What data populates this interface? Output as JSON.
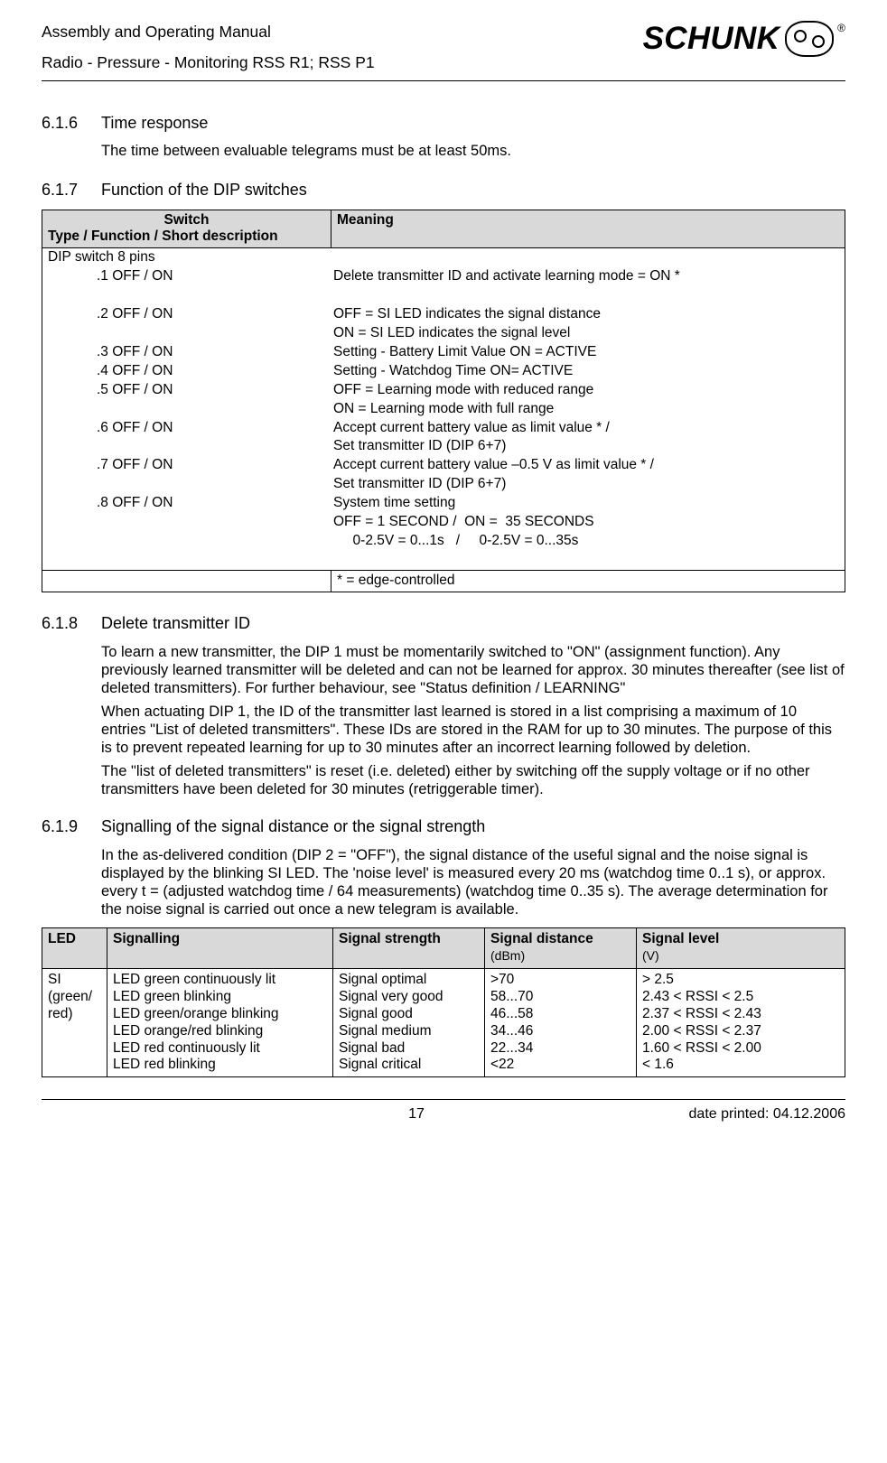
{
  "header": {
    "line1": "Assembly and Operating Manual",
    "line2": "Radio - Pressure - Monitoring RSS R1; RSS P1",
    "logo_text": "SCHUNK",
    "logo_reg": "®"
  },
  "s616": {
    "num": "6.1.6",
    "title": "Time response",
    "text": "The time between evaluable telegrams must be at least 50ms."
  },
  "s617": {
    "num": "6.1.7",
    "title": "Function of the DIP switches",
    "th1a": "Switch",
    "th1b": "Type / Function / Short description",
    "th2": "Meaning",
    "dip_title": "DIP switch 8 pins",
    "rows": [
      {
        "k": ".1 OFF / ON",
        "v": "Delete transmitter ID and activate learning mode = ON *"
      },
      {
        "k": "",
        "v": ""
      },
      {
        "k": ".2 OFF / ON",
        "v": "OFF = SI LED indicates the signal distance"
      },
      {
        "k": "",
        "v": "ON = SI LED indicates the signal level"
      },
      {
        "k": ".3 OFF / ON",
        "v": "Setting - Battery Limit Value ON = ACTIVE"
      },
      {
        "k": ".4 OFF / ON",
        "v": "Setting - Watchdog Time ON= ACTIVE"
      },
      {
        "k": ".5 OFF / ON",
        "v": "OFF = Learning mode with reduced range"
      },
      {
        "k": "",
        "v": "ON = Learning mode with full range"
      },
      {
        "k": ".6 OFF / ON",
        "v": "Accept current battery value as limit value * /"
      },
      {
        "k": "",
        "v": "Set transmitter ID (DIP 6+7)"
      },
      {
        "k": ".7 OFF / ON",
        "v": "Accept current battery value –0.5 V as limit value * /"
      },
      {
        "k": "",
        "v": "Set transmitter ID (DIP 6+7)"
      },
      {
        "k": ".8 OFF / ON",
        "v": "System time setting"
      },
      {
        "k": "",
        "v": "OFF = 1 SECOND /  ON =  35 SECONDS"
      },
      {
        "k": "",
        "v": "     0-2.5V = 0...1s   /     0-2.5V = 0...35s"
      },
      {
        "k": "",
        "v": ""
      }
    ],
    "star": "* = edge-controlled"
  },
  "s618": {
    "num": "6.1.8",
    "title": "Delete transmitter ID",
    "p1": "To learn a new transmitter, the DIP 1 must be momentarily switched to \"ON\" (assignment function). Any previously learned transmitter will be deleted and can not be learned for approx. 30 minutes thereafter (see list of deleted transmitters). For further behaviour, see \"Status definition / LEARNING\"",
    "p2": "When actuating DIP 1, the ID of the transmitter last learned is stored in a list comprising a maximum of 10 entries \"List of deleted transmitters\". These IDs are stored in the RAM for up to 30 minutes. The purpose of this is to prevent repeated learning for up to 30 minutes after an incorrect learning followed by deletion.",
    "p3": "The \"list of deleted transmitters\" is reset (i.e. deleted) either by switching off the supply voltage or if no other transmitters have been deleted for 30 minutes (retriggerable timer)."
  },
  "s619": {
    "num": "6.1.9",
    "title": "Signalling of the signal distance or the signal strength",
    "p1": "In the as-delivered condition (DIP 2 = \"OFF\"), the signal distance of the useful signal and the noise signal is displayed by the blinking SI LED. The 'noise level' is measured every 20 ms (watchdog time 0..1 s), or approx. every t = (adjusted watchdog time / 64 measurements) (watchdog time 0..35 s). The average determination for the noise signal is carried out once a new telegram is available."
  },
  "sig": {
    "th_led": "LED",
    "th_signalling": "Signalling",
    "th_strength": "Signal strength",
    "th_dist": "Signal distance",
    "th_dist_sub": "(dBm)",
    "th_level": "Signal level",
    "th_level_sub": "(V)",
    "led1": "SI",
    "led2": "(green/",
    "led3": "red)",
    "sigs": [
      "LED green continuously lit",
      "LED green blinking",
      "LED green/orange blinking",
      "LED orange/red blinking",
      "LED red continuously lit",
      "LED red blinking"
    ],
    "strengths": [
      "Signal optimal",
      "Signal very good",
      "Signal good",
      "Signal medium",
      "Signal bad",
      "Signal critical"
    ],
    "dists": [
      ">70",
      "58...70",
      "46...58",
      "34...46",
      "22...34",
      "<22"
    ],
    "levels": [
      "> 2.5",
      "2.43 < RSSI < 2.5",
      "2.37 < RSSI < 2.43",
      "2.00 < RSSI < 2.37",
      "1.60 < RSSI < 2.00",
      "< 1.6"
    ]
  },
  "footer": {
    "page": "17",
    "date": "date printed: 04.12.2006"
  }
}
